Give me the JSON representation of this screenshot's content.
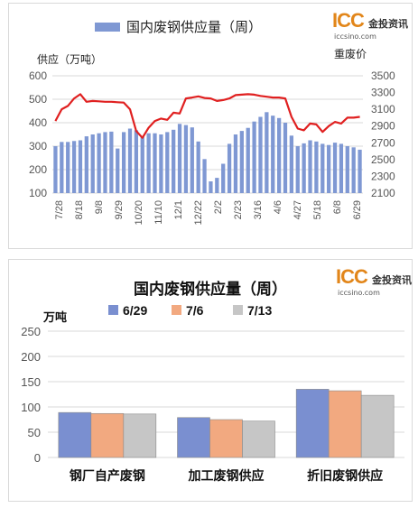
{
  "chart_data": [
    {
      "type": "bar",
      "title": "国内废钢供应量（周）",
      "legend": [
        "国内废钢供应量（周）"
      ],
      "legend_position": "top",
      "ylabel_left": "供应（万吨）",
      "ylabel_right": "重废价",
      "ylim_left": [
        100,
        600
      ],
      "ylim_right": [
        2100,
        3500
      ],
      "yticks_left": [
        "100",
        "200",
        "300",
        "400",
        "500",
        "600"
      ],
      "yticks_right": [
        "2100",
        "2300",
        "2500",
        "2700",
        "2900",
        "3100",
        "3300",
        "3500"
      ],
      "xticks": [
        "7/28",
        "8/18",
        "9/8",
        "9/29",
        "10/20",
        "11/10",
        "12/1",
        "12/22",
        "2/2",
        "2/23",
        "3/16",
        "4/6",
        "4/27",
        "5/18",
        "6/8",
        "6/29"
      ],
      "grid": true,
      "bar_color": "#7f98d3",
      "line_color": "#e02020",
      "bars": [
        300,
        318,
        318,
        322,
        325,
        342,
        350,
        355,
        360,
        362,
        290,
        360,
        375,
        368,
        340,
        355,
        355,
        350,
        360,
        370,
        395,
        390,
        380,
        320,
        245,
        150,
        165,
        225,
        310,
        350,
        365,
        378,
        405,
        425,
        445,
        430,
        420,
        400,
        345,
        300,
        312,
        325,
        320,
        310,
        305,
        315,
        310,
        300,
        295,
        285
      ],
      "line": [
        2960,
        3100,
        3140,
        3230,
        3280,
        3190,
        3200,
        3195,
        3190,
        3190,
        3185,
        3180,
        3100,
        2840,
        2760,
        2880,
        2960,
        2990,
        2975,
        3060,
        3050,
        3230,
        3240,
        3255,
        3235,
        3230,
        3200,
        3210,
        3230,
        3270,
        3275,
        3280,
        3275,
        3260,
        3250,
        3240,
        3240,
        3230,
        3010,
        2870,
        2850,
        2930,
        2920,
        2830,
        2900,
        2950,
        2930,
        3000,
        3000,
        3010
      ]
    },
    {
      "type": "bar",
      "title": "国内废钢供应量（周）",
      "ylabel": "万吨",
      "ylim": [
        0,
        250
      ],
      "yticks": [
        "0",
        "50",
        "100",
        "150",
        "200",
        "250"
      ],
      "categories": [
        "钢厂自产废钢",
        "加工废钢供应",
        "折旧废钢供应"
      ],
      "series": [
        {
          "name": "6/29",
          "color": "#7a8fd0",
          "values": [
            89,
            79,
            135
          ]
        },
        {
          "name": "7/6",
          "color": "#f2a980",
          "values": [
            87,
            75,
            132
          ]
        },
        {
          "name": "7/13",
          "color": "#c6c6c6",
          "values": [
            86,
            72,
            123
          ]
        }
      ],
      "legend_position": "top",
      "grid": true
    }
  ],
  "logo": {
    "mark": "ICC",
    "name": "金投资讯",
    "url": "iccsino.com"
  }
}
